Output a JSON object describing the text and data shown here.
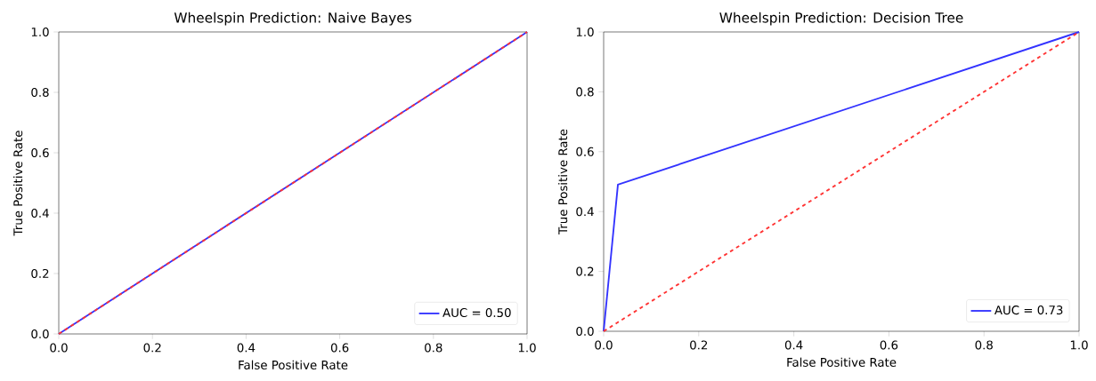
{
  "chart_data": [
    {
      "type": "line",
      "title": "Wheelspin Prediction: Naive Bayes",
      "xlabel": "False Positive Rate",
      "ylabel": "True Positive Rate",
      "xlim": [
        0,
        1
      ],
      "ylim": [
        0,
        1
      ],
      "xticks": [
        {
          "value": 0,
          "label": "0.0"
        },
        {
          "value": 0.2,
          "label": "0.2"
        },
        {
          "value": 0.4,
          "label": "0.4"
        },
        {
          "value": 0.6,
          "label": "0.6"
        },
        {
          "value": 0.8,
          "label": "0.8"
        },
        {
          "value": 1,
          "label": "1.0"
        }
      ],
      "yticks": [
        {
          "value": 0,
          "label": "0.0"
        },
        {
          "value": 0.2,
          "label": "0.2"
        },
        {
          "value": 0.4,
          "label": "0.4"
        },
        {
          "value": 0.6,
          "label": "0.6"
        },
        {
          "value": 0.8,
          "label": "0.8"
        },
        {
          "value": 1,
          "label": "1.0"
        }
      ],
      "legend": "bottom right",
      "series": [
        {
          "name": "AUC = 0.50",
          "color": "#3333ff",
          "x": [
            0,
            1
          ],
          "values": [
            0,
            1
          ],
          "line_style": "solid"
        },
        {
          "color": "#ff3333",
          "x": [
            0,
            1
          ],
          "values": [
            0,
            1
          ],
          "line_style": "dashed"
        }
      ]
    },
    {
      "type": "line",
      "title": "Wheelspin Prediction: Decision Tree",
      "xlabel": "False Positive Rate",
      "ylabel": "True Positive Rate",
      "xlim": [
        0,
        1
      ],
      "ylim": [
        0,
        1
      ],
      "xticks": [
        {
          "value": 0,
          "label": "0.0"
        },
        {
          "value": 0.2,
          "label": "0.2"
        },
        {
          "value": 0.4,
          "label": "0.4"
        },
        {
          "value": 0.6,
          "label": "0.6"
        },
        {
          "value": 0.8,
          "label": "0.8"
        },
        {
          "value": 1,
          "label": "1.0"
        }
      ],
      "yticks": [
        {
          "value": 0,
          "label": "0.0"
        },
        {
          "value": 0.2,
          "label": "0.2"
        },
        {
          "value": 0.4,
          "label": "0.4"
        },
        {
          "value": 0.6,
          "label": "0.6"
        },
        {
          "value": 0.8,
          "label": "0.8"
        },
        {
          "value": 1,
          "label": "1.0"
        }
      ],
      "legend": "bottom right",
      "series": [
        {
          "name": "AUC = 0.73",
          "color": "#3333ff",
          "x": [
            0,
            0.03,
            1
          ],
          "values": [
            0,
            0.49,
            1
          ],
          "line_style": "solid"
        },
        {
          "color": "#ff3333",
          "x": [
            0,
            1
          ],
          "values": [
            0,
            1
          ],
          "line_style": "dashed"
        }
      ]
    }
  ]
}
